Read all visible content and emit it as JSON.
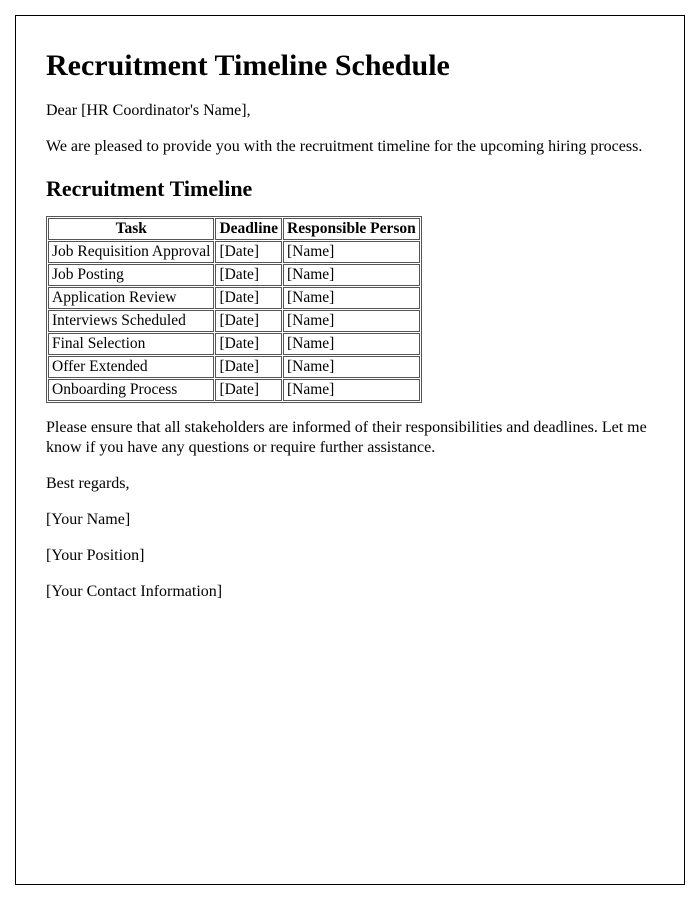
{
  "document": {
    "title": "Recruitment Timeline Schedule",
    "salutation": "Dear [HR Coordinator's Name],",
    "intro_paragraph": "We are pleased to provide you with the recruitment timeline for the upcoming hiring process.",
    "section_heading": "Recruitment Timeline",
    "closing_paragraph": "Please ensure that all stakeholders are informed of their responsibilities and deadlines. Let me know if you have any questions or require further assistance.",
    "signoff": "Best regards,",
    "sender_name": "[Your Name]",
    "sender_position": "[Your Position]",
    "sender_contact": "[Your Contact Information]"
  },
  "table": {
    "columns": [
      "Task",
      "Deadline",
      "Responsible Person"
    ],
    "rows": [
      {
        "task": "Job Requisition Approval",
        "deadline": "[Date]",
        "person": "[Name]"
      },
      {
        "task": "Job Posting",
        "deadline": "[Date]",
        "person": "[Name]"
      },
      {
        "task": "Application Review",
        "deadline": "[Date]",
        "person": "[Name]"
      },
      {
        "task": "Interviews Scheduled",
        "deadline": "[Date]",
        "person": "[Name]"
      },
      {
        "task": "Final Selection",
        "deadline": "[Date]",
        "person": "[Name]"
      },
      {
        "task": "Offer Extended",
        "deadline": "[Date]",
        "person": "[Name]"
      },
      {
        "task": "Onboarding Process",
        "deadline": "[Date]",
        "person": "[Name]"
      }
    ]
  },
  "styles": {
    "border_color": "#000000",
    "table_border_color": "#555555",
    "background_color": "#ffffff",
    "text_color": "#000000",
    "h1_fontsize": 30,
    "h2_fontsize": 22,
    "body_fontsize": 16,
    "font_family": "Times New Roman"
  }
}
